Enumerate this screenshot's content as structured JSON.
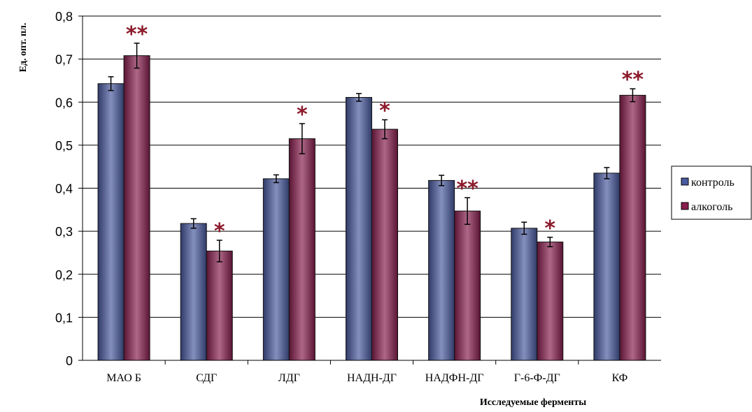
{
  "chart_data": {
    "type": "bar",
    "categories": [
      "МАО Б",
      "СДГ",
      "ЛДГ",
      "НАДН-ДГ",
      "НАДФН-ДГ",
      "Г-6-Ф-ДГ",
      "КФ"
    ],
    "series": [
      {
        "name": "контроль",
        "values": [
          0.643,
          0.318,
          0.422,
          0.611,
          0.418,
          0.307,
          0.435
        ],
        "errors": [
          0.016,
          0.011,
          0.009,
          0.009,
          0.012,
          0.014,
          0.013
        ],
        "color": "#4a5ba0"
      },
      {
        "name": "алкоголь",
        "values": [
          0.708,
          0.254,
          0.515,
          0.537,
          0.347,
          0.275,
          0.616
        ],
        "errors": [
          0.029,
          0.025,
          0.035,
          0.022,
          0.031,
          0.011,
          0.015
        ],
        "color": "#8a1f4e"
      }
    ],
    "annotations": [
      "**",
      "*",
      "*",
      "*",
      "**",
      "*",
      "**"
    ],
    "annotation_color": "#8b1a2b",
    "ylabel": "Ед. опт. пл.",
    "xlabel": "Исследуемые ферменты",
    "ylim": [
      0,
      0.8
    ],
    "yticks": [
      "0",
      "0,1",
      "0,2",
      "0,3",
      "0,4",
      "0,5",
      "0,6",
      "0,7",
      "0,8"
    ],
    "grid": true,
    "legend_position": "right"
  }
}
